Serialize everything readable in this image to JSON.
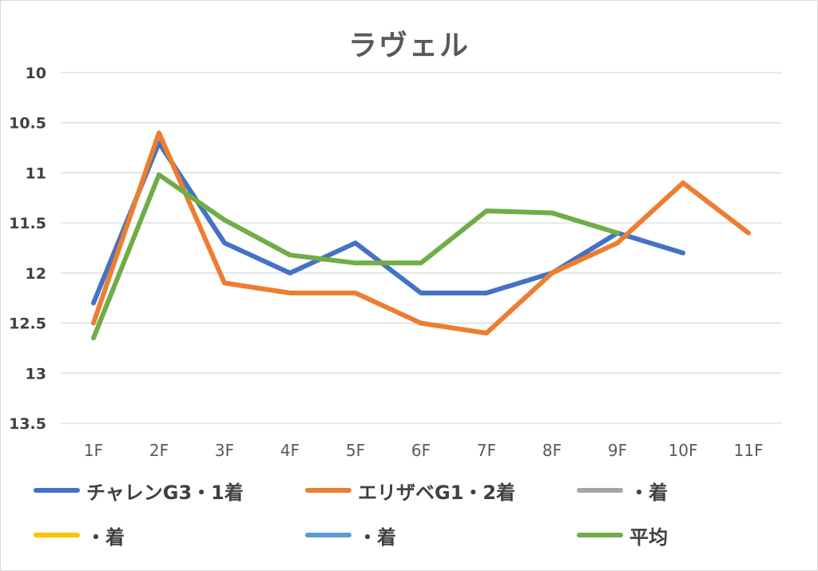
{
  "chart_data": {
    "type": "line",
    "title": "ラヴェル",
    "categories": [
      "1F",
      "2F",
      "3F",
      "4F",
      "5F",
      "6F",
      "7F",
      "8F",
      "9F",
      "10F",
      "11F"
    ],
    "y_ticks": [
      "10",
      "10.5",
      "11",
      "11.5",
      "12",
      "12.5",
      "13",
      "13.5"
    ],
    "ylim": [
      10,
      13.5
    ],
    "y_reversed": true,
    "grid": true,
    "legend_position": "bottom",
    "series": [
      {
        "name": "チャレンG3・1着",
        "color": "#4472C4",
        "values": [
          12.3,
          10.7,
          11.7,
          12.0,
          11.7,
          12.2,
          12.2,
          12.0,
          11.6,
          11.8,
          null
        ]
      },
      {
        "name": "エリザベG1・2着",
        "color": "#ED7D31",
        "values": [
          12.5,
          10.6,
          12.1,
          12.2,
          12.2,
          12.5,
          12.6,
          12.0,
          11.7,
          11.1,
          11.6
        ]
      },
      {
        "name": "・着",
        "color": "#A5A5A5",
        "values": [
          null,
          null,
          null,
          null,
          null,
          null,
          null,
          null,
          null,
          null,
          null
        ]
      },
      {
        "name": "・着",
        "color": "#FFC000",
        "values": [
          null,
          null,
          null,
          null,
          null,
          null,
          null,
          null,
          null,
          null,
          null
        ]
      },
      {
        "name": "・着",
        "color": "#5B9BD5",
        "values": [
          null,
          null,
          null,
          null,
          null,
          null,
          null,
          null,
          null,
          null,
          null
        ]
      },
      {
        "name": "平均",
        "color": "#70AD47",
        "values": [
          12.65,
          11.02,
          11.47,
          11.82,
          11.9,
          11.9,
          11.38,
          11.4,
          11.6,
          null,
          null
        ]
      }
    ]
  }
}
